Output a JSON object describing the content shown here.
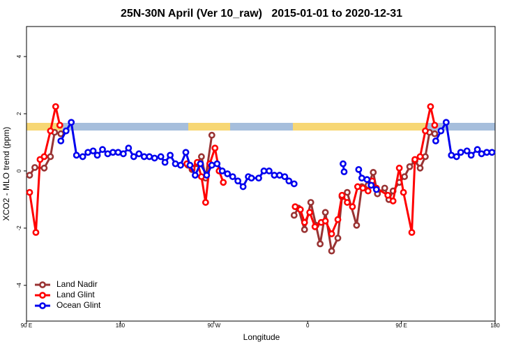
{
  "chart_data": {
    "type": "line",
    "title": "25N-30N April (Ver 10_raw)   2015-01-01 to 2020-12-31",
    "x_label": "Longitude",
    "y_label": "XCO2 - MLO trend (ppm)",
    "xlim": [
      90,
      540
    ],
    "xticks": [
      {
        "value": 90,
        "label": "90 E"
      },
      180,
      {
        "value": 270,
        "label": "90 W"
      },
      {
        "value": 360,
        "label": "0"
      },
      {
        "value": 450,
        "label": "90 E"
      },
      {
        "value": 540,
        "label": "180"
      }
    ],
    "ylim": [
      -5.25,
      5.05
    ],
    "yticks": [
      -4,
      -2,
      0,
      2,
      4
    ],
    "grid": false,
    "legend": "bottom-left",
    "series": [
      {
        "name": "Land Nadir",
        "color": "#993333",
        "x": [
          93,
          98,
          107,
          113,
          117,
          123,
          null,
          245,
          249,
          254,
          258,
          262,
          268,
          null,
          347,
          351,
          357,
          363,
          368,
          372,
          377,
          383,
          389,
          393,
          398,
          407,
          412,
          418,
          423,
          427,
          434,
          438,
          442,
          448,
          453,
          458,
          463,
          468,
          473,
          477,
          482
        ],
        "values": [
          -0.15,
          0.12,
          0.1,
          0.5,
          1.35,
          1.3,
          null,
          0.2,
          0.05,
          0.25,
          0.5,
          -0.25,
          1.25,
          null,
          -1.55,
          -1.3,
          -2.05,
          -1.1,
          -1.9,
          -2.55,
          -1.45,
          -2.8,
          -2.35,
          -0.9,
          -0.75,
          -1.9,
          -0.55,
          -0.5,
          -0.05,
          -0.8,
          -0.6,
          -1.0,
          -0.7,
          -0.4,
          -0.2,
          0.15,
          0.35,
          0.1,
          0.5,
          1.35,
          1.3
        ]
      },
      {
        "name": "Land Glint",
        "color": "#ff0000",
        "x": [
          93,
          99,
          103,
          107,
          113,
          118,
          122,
          null,
          244,
          249,
          254,
          258,
          262,
          266,
          271,
          275,
          279,
          null,
          348,
          353,
          357,
          362,
          367,
          373,
          377,
          383,
          389,
          393,
          398,
          403,
          408,
          413,
          418,
          422,
          426,
          437,
          442,
          448,
          452,
          460,
          463,
          468,
          473,
          478,
          482
        ],
        "values": [
          -0.75,
          -2.15,
          0.4,
          0.5,
          1.4,
          2.25,
          1.6,
          null,
          0.25,
          0.1,
          0.3,
          -0.2,
          -1.1,
          0.25,
          0.8,
          0.0,
          -0.4,
          null,
          -1.25,
          -1.35,
          -1.8,
          -1.45,
          -1.95,
          -1.8,
          -1.75,
          -2.2,
          -1.7,
          -0.85,
          -1.1,
          -1.25,
          -0.55,
          -0.6,
          -0.7,
          -0.35,
          -0.6,
          -0.85,
          -1.05,
          0.1,
          -0.75,
          -2.15,
          0.4,
          0.5,
          1.4,
          2.25,
          1.6
        ]
      },
      {
        "name": "Ocean Glint",
        "color": "#0000ee",
        "x": [
          123,
          128,
          133,
          138,
          144,
          149,
          154,
          158,
          163,
          168,
          173,
          178,
          183,
          188,
          193,
          198,
          203,
          208,
          213,
          219,
          223,
          228,
          233,
          238,
          243,
          247,
          252,
          257,
          263,
          268,
          273,
          278,
          283,
          288,
          293,
          298,
          303,
          306,
          313,
          318,
          323,
          328,
          333,
          338,
          342,
          347,
          null,
          394,
          395,
          null,
          409,
          412,
          417,
          421,
          426,
          null,
          483,
          488,
          493,
          498,
          503,
          507,
          513,
          517,
          523,
          527,
          532,
          537
        ],
        "values": [
          1.05,
          1.4,
          1.7,
          0.55,
          0.5,
          0.65,
          0.7,
          0.55,
          0.75,
          0.6,
          0.65,
          0.65,
          0.6,
          0.8,
          0.5,
          0.6,
          0.5,
          0.5,
          0.45,
          0.5,
          0.3,
          0.55,
          0.25,
          0.2,
          0.65,
          0.2,
          -0.15,
          0.25,
          -0.15,
          0.2,
          0.25,
          0.0,
          -0.1,
          -0.2,
          -0.35,
          -0.55,
          -0.2,
          -0.25,
          -0.25,
          0.0,
          0.0,
          -0.15,
          -0.15,
          -0.2,
          -0.35,
          -0.45,
          null,
          0.25,
          -0.03,
          null,
          0.05,
          -0.25,
          -0.3,
          -0.5,
          -0.65,
          null,
          1.05,
          1.4,
          1.7,
          0.55,
          0.5,
          0.65,
          0.7,
          0.55,
          0.75,
          0.6,
          0.65,
          0.65
        ]
      }
    ]
  }
}
